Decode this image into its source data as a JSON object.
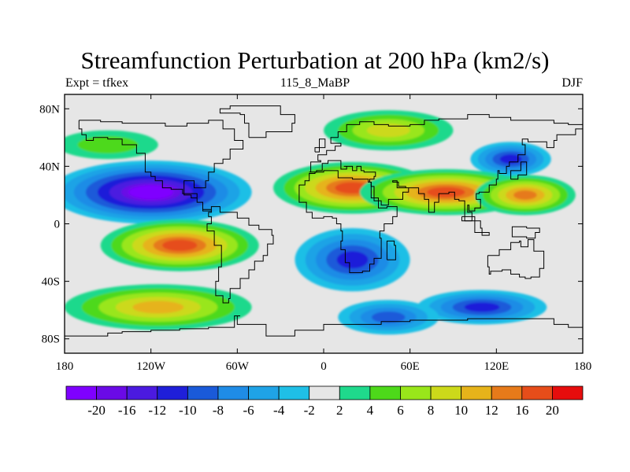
{
  "title": "Streamfunction Perturbation at 200 hPa (km2/s)",
  "subtitle_left": "Expt = tfkex",
  "subtitle_center": "115_8_MaBP",
  "subtitle_right": "DJF",
  "map": {
    "projection": "cylindrical equidistant",
    "lon_range": [
      -180,
      180
    ],
    "lat_range": [
      -90,
      90
    ],
    "lon_ticks": [
      {
        "value": -180,
        "label": "180"
      },
      {
        "value": -120,
        "label": "120W"
      },
      {
        "value": -60,
        "label": "60W"
      },
      {
        "value": 0,
        "label": "0"
      },
      {
        "value": 60,
        "label": "60E"
      },
      {
        "value": 120,
        "label": "120E"
      },
      {
        "value": 180,
        "label": "180"
      }
    ],
    "lat_ticks": [
      {
        "value": 80,
        "label": "80N"
      },
      {
        "value": 40,
        "label": "40N"
      },
      {
        "value": 0,
        "label": "0"
      },
      {
        "value": -40,
        "label": "40S"
      },
      {
        "value": -80,
        "label": "80S"
      }
    ],
    "background_color": "#e6e6e6",
    "coastline_color": "#000000"
  },
  "colorbar": {
    "colors": [
      "#7f00ff",
      "#6a0ae6",
      "#4b1ae0",
      "#1f1fd9",
      "#1a5ad9",
      "#1f8ce6",
      "#1fa3e6",
      "#1fbfe6",
      "#e6e6e6",
      "#1fd98c",
      "#4dd91a",
      "#99e61a",
      "#ccd91a",
      "#e6b31a",
      "#e67a1a",
      "#e64d1a",
      "#e60d0d"
    ],
    "labels": [
      "-20",
      "-16",
      "-12",
      "-10",
      "-8",
      "-6",
      "-4",
      "-2",
      "2",
      "4",
      "6",
      "8",
      "10",
      "12",
      "16",
      "20"
    ]
  },
  "chart_data": {
    "type": "heatmap",
    "variable": "Streamfunction Perturbation",
    "level_hPa": 200,
    "units": "km2/s",
    "season": "DJF",
    "experiment": "tfkex",
    "contour_levels": [
      -20,
      -16,
      -12,
      -10,
      -8,
      -6,
      -4,
      -2,
      2,
      4,
      6,
      8,
      10,
      12,
      16,
      20
    ],
    "features": [
      {
        "lon": -120,
        "lat": 22,
        "value": -21
      },
      {
        "lon": 130,
        "lat": 45,
        "value": -10
      },
      {
        "lon": 20,
        "lat": -25,
        "value": -11
      },
      {
        "lon": 110,
        "lat": -58,
        "value": -10
      },
      {
        "lon": 45,
        "lat": -65,
        "value": -9
      },
      {
        "lon": -100,
        "lat": -15,
        "value": 17
      },
      {
        "lon": 20,
        "lat": 25,
        "value": 17
      },
      {
        "lon": 85,
        "lat": 22,
        "value": 17
      },
      {
        "lon": 140,
        "lat": 20,
        "value": 14
      },
      {
        "lon": 45,
        "lat": 65,
        "value": 8
      },
      {
        "lon": -115,
        "lat": -58,
        "value": 10
      },
      {
        "lon": -150,
        "lat": 55,
        "value": 4
      }
    ]
  }
}
